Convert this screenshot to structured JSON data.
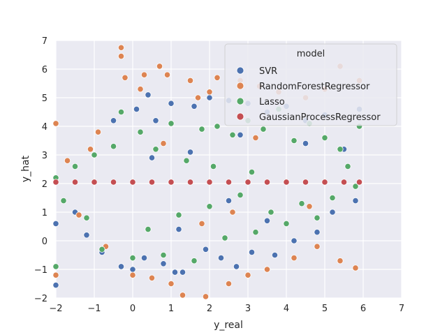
{
  "chart_data": {
    "type": "scatter",
    "title": "",
    "xlabel": "y_real",
    "ylabel": "y_hat",
    "xlim": [
      -2,
      7
    ],
    "ylim": [
      -2,
      7
    ],
    "xticks": [
      "−2",
      "−1",
      "0",
      "1",
      "2",
      "3",
      "4",
      "5",
      "6",
      "7"
    ],
    "yticks": [
      "−2",
      "−1",
      "0",
      "1",
      "2",
      "3",
      "4",
      "5",
      "6",
      "7"
    ],
    "grid": true,
    "legend": {
      "title": "model",
      "placement": "top-right"
    },
    "series": [
      {
        "name": "SVR",
        "color": "#4c72b0",
        "points": [
          [
            -2.0,
            -1.55
          ],
          [
            -2.0,
            0.6
          ],
          [
            -1.5,
            1.0
          ],
          [
            -1.2,
            0.2
          ],
          [
            -0.8,
            -0.4
          ],
          [
            -0.5,
            4.2
          ],
          [
            -0.3,
            -0.9
          ],
          [
            0.0,
            -1.0
          ],
          [
            0.1,
            4.6
          ],
          [
            0.3,
            -0.6
          ],
          [
            0.4,
            5.1
          ],
          [
            0.6,
            4.2
          ],
          [
            0.8,
            -0.8
          ],
          [
            1.0,
            4.8
          ],
          [
            1.1,
            -1.1
          ],
          [
            1.3,
            -1.1
          ],
          [
            1.6,
            4.7
          ],
          [
            1.9,
            -0.3
          ],
          [
            2.0,
            5.0
          ],
          [
            2.3,
            -0.6
          ],
          [
            2.5,
            4.9
          ],
          [
            2.7,
            -0.9
          ],
          [
            3.0,
            4.8
          ],
          [
            3.1,
            -0.4
          ],
          [
            3.5,
            4.5
          ],
          [
            3.7,
            -0.5
          ],
          [
            4.0,
            4.7
          ],
          [
            4.2,
            0.0
          ],
          [
            4.5,
            4.2
          ],
          [
            4.8,
            0.3
          ],
          [
            5.0,
            4.4
          ],
          [
            5.2,
            1.0
          ],
          [
            5.5,
            3.2
          ],
          [
            5.8,
            1.4
          ],
          [
            5.9,
            4.6
          ],
          [
            0.5,
            2.9
          ],
          [
            1.5,
            3.1
          ],
          [
            2.5,
            1.4
          ],
          [
            3.5,
            0.7
          ],
          [
            4.5,
            3.4
          ],
          [
            1.2,
            0.4
          ],
          [
            2.8,
            3.7
          ]
        ]
      },
      {
        "name": "RandomForestRegressor",
        "color": "#dd8452",
        "points": [
          [
            -2.0,
            4.1
          ],
          [
            -2.0,
            -1.2
          ],
          [
            -1.7,
            2.8
          ],
          [
            -1.4,
            0.9
          ],
          [
            -1.1,
            3.2
          ],
          [
            -0.9,
            3.8
          ],
          [
            -0.7,
            -0.2
          ],
          [
            -0.3,
            6.75
          ],
          [
            -0.3,
            6.45
          ],
          [
            -0.2,
            5.7
          ],
          [
            0.0,
            -1.2
          ],
          [
            0.2,
            5.3
          ],
          [
            0.3,
            5.8
          ],
          [
            0.5,
            -1.3
          ],
          [
            0.7,
            6.1
          ],
          [
            0.9,
            5.8
          ],
          [
            1.0,
            -1.5
          ],
          [
            1.3,
            -1.9
          ],
          [
            1.5,
            5.6
          ],
          [
            1.7,
            5.0
          ],
          [
            1.9,
            -1.95
          ],
          [
            2.0,
            5.2
          ],
          [
            2.2,
            5.7
          ],
          [
            2.5,
            -1.5
          ],
          [
            2.8,
            5.6
          ],
          [
            3.0,
            -1.2
          ],
          [
            3.3,
            5.4
          ],
          [
            3.5,
            -1.0
          ],
          [
            3.8,
            5.2
          ],
          [
            4.2,
            -0.6
          ],
          [
            4.5,
            5.0
          ],
          [
            4.8,
            -0.2
          ],
          [
            5.0,
            5.3
          ],
          [
            5.4,
            6.1
          ],
          [
            5.4,
            -0.7
          ],
          [
            5.8,
            -0.95
          ],
          [
            5.9,
            5.6
          ],
          [
            1.8,
            0.6
          ],
          [
            3.2,
            3.6
          ],
          [
            4.6,
            1.2
          ],
          [
            0.8,
            3.4
          ],
          [
            2.6,
            1.0
          ]
        ]
      },
      {
        "name": "Lasso",
        "color": "#55a868",
        "points": [
          [
            -2.0,
            -0.9
          ],
          [
            -2.0,
            2.2
          ],
          [
            -1.8,
            1.4
          ],
          [
            -1.5,
            2.6
          ],
          [
            -1.2,
            0.8
          ],
          [
            -1.0,
            3.0
          ],
          [
            -0.8,
            -0.3
          ],
          [
            -0.5,
            3.3
          ],
          [
            -0.3,
            4.5
          ],
          [
            0.0,
            -0.6
          ],
          [
            0.2,
            3.8
          ],
          [
            0.4,
            0.4
          ],
          [
            0.6,
            3.2
          ],
          [
            0.8,
            -0.5
          ],
          [
            1.0,
            4.1
          ],
          [
            1.2,
            0.9
          ],
          [
            1.4,
            2.8
          ],
          [
            1.6,
            -0.7
          ],
          [
            1.8,
            3.9
          ],
          [
            2.0,
            1.2
          ],
          [
            2.2,
            4.0
          ],
          [
            2.4,
            0.1
          ],
          [
            2.6,
            3.7
          ],
          [
            2.8,
            1.6
          ],
          [
            3.0,
            4.2
          ],
          [
            3.2,
            0.3
          ],
          [
            3.4,
            3.9
          ],
          [
            3.6,
            1.0
          ],
          [
            3.8,
            4.6
          ],
          [
            4.0,
            0.6
          ],
          [
            4.2,
            3.5
          ],
          [
            4.4,
            1.3
          ],
          [
            4.6,
            4.1
          ],
          [
            4.8,
            0.8
          ],
          [
            5.0,
            3.6
          ],
          [
            5.2,
            1.5
          ],
          [
            5.4,
            3.2
          ],
          [
            5.6,
            2.6
          ],
          [
            5.8,
            1.9
          ],
          [
            5.9,
            4.0
          ],
          [
            2.1,
            2.6
          ],
          [
            3.1,
            2.4
          ]
        ]
      },
      {
        "name": "GaussianProcessRegressor",
        "color": "#c44e52",
        "points": [
          [
            -2.0,
            2.05
          ],
          [
            -1.5,
            2.05
          ],
          [
            -1.0,
            2.05
          ],
          [
            -0.5,
            2.05
          ],
          [
            0.0,
            2.05
          ],
          [
            0.5,
            2.05
          ],
          [
            1.0,
            2.05
          ],
          [
            1.5,
            2.05
          ],
          [
            2.0,
            2.05
          ],
          [
            2.5,
            2.05
          ],
          [
            3.0,
            2.05
          ],
          [
            3.5,
            2.05
          ],
          [
            4.0,
            2.05
          ],
          [
            4.5,
            2.05
          ],
          [
            5.0,
            2.05
          ],
          [
            5.5,
            2.05
          ],
          [
            5.9,
            2.05
          ]
        ]
      }
    ]
  }
}
